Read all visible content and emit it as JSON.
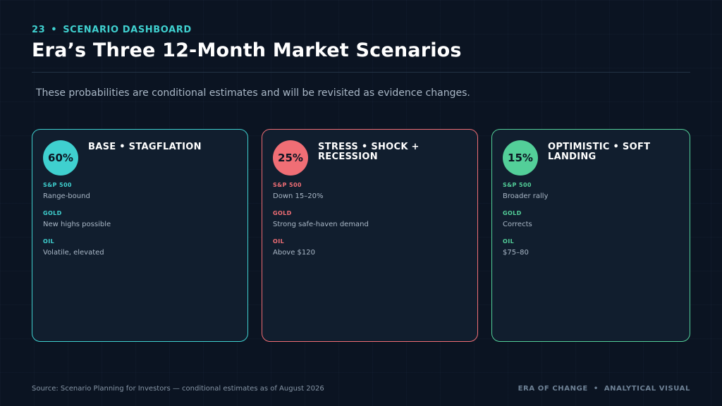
{
  "header": {
    "slide_number": "23",
    "separator": "•",
    "section": "SCENARIO DASHBOARD",
    "title": "Era’s Three 12-Month Market Scenarios",
    "subtitle": "These probabilities are conditional estimates and will be revisited as evidence changes."
  },
  "colors": {
    "background": "#0b1422",
    "accent_teal": "#3fd0cf",
    "accent_red": "#f06e75",
    "accent_green": "#53cf99"
  },
  "scenarios": [
    {
      "probability": "60%",
      "title": "BASE • STAGFLATION",
      "metrics": [
        {
          "label": "S&P 500",
          "value": "Range-bound"
        },
        {
          "label": "GOLD",
          "value": "New highs possible"
        },
        {
          "label": "OIL",
          "value": "Volatile, elevated"
        }
      ]
    },
    {
      "probability": "25%",
      "title": "STRESS • SHOCK + RECESSION",
      "metrics": [
        {
          "label": "S&P 500",
          "value": "Down 15–20%"
        },
        {
          "label": "GOLD",
          "value": "Strong safe-haven demand"
        },
        {
          "label": "OIL",
          "value": "Above $120"
        }
      ]
    },
    {
      "probability": "15%",
      "title": "OPTIMISTIC • SOFT LANDING",
      "metrics": [
        {
          "label": "S&P 500",
          "value": "Broader rally"
        },
        {
          "label": "GOLD",
          "value": "Corrects"
        },
        {
          "label": "OIL",
          "value": "$75–80"
        }
      ]
    }
  ],
  "footer": {
    "source": "Source: Scenario Planning for Investors — conditional estimates as of August 2026",
    "brand_left": "ERA OF CHANGE",
    "brand_separator": "•",
    "brand_right": "ANALYTICAL VISUAL"
  }
}
